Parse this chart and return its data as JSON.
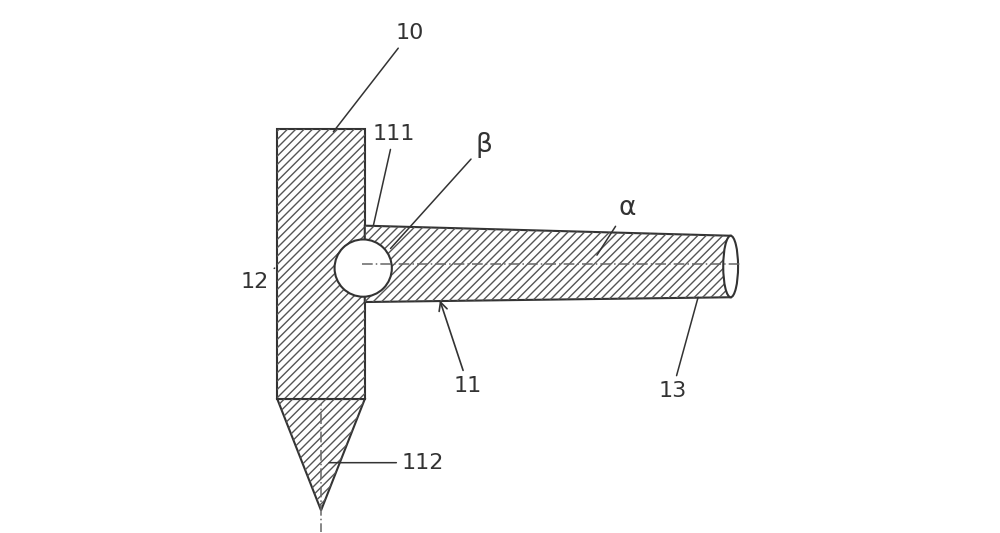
{
  "bg_color": "#ffffff",
  "line_color": "#333333",
  "hatch_color": "#555555",
  "dash_dot_color": "#666666",
  "label_fontsize": 16,
  "figsize": [
    10.0,
    5.33
  ],
  "dpi": 100
}
